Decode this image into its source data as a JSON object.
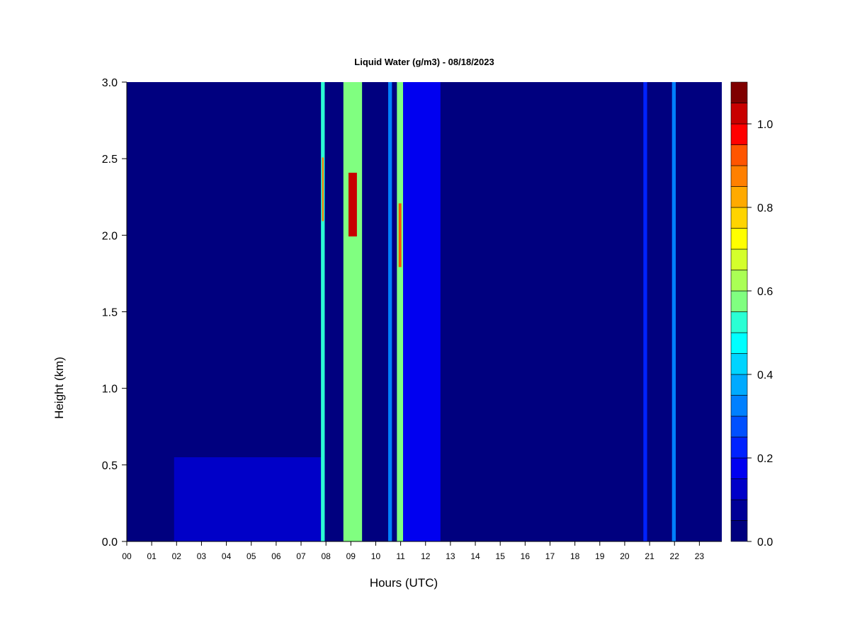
{
  "chart_data": {
    "type": "heatmap",
    "title": "Liquid Water (g/m3) - 08/18/2023",
    "xlabel": "Hours (UTC)",
    "ylabel": "Height (km)",
    "xlim": [
      0,
      23.9
    ],
    "ylim": [
      0,
      3.0
    ],
    "x_tick_labels": [
      "00",
      "01",
      "02",
      "03",
      "04",
      "05",
      "06",
      "07",
      "08",
      "09",
      "10",
      "11",
      "12",
      "13",
      "14",
      "15",
      "16",
      "17",
      "18",
      "19",
      "20",
      "21",
      "22",
      "23"
    ],
    "y_tick_labels": [
      "0.0",
      "0.5",
      "1.0",
      "1.5",
      "2.0",
      "2.5",
      "3.0"
    ],
    "y_tick_values": [
      0.0,
      0.5,
      1.0,
      1.5,
      2.0,
      2.5,
      3.0
    ],
    "background_value": 0.0,
    "colorbar": {
      "range": [
        0.0,
        1.1
      ],
      "levels": 22,
      "tick_labels": [
        "0.0",
        "0.2",
        "0.4",
        "0.6",
        "0.8",
        "1.0"
      ],
      "tick_values": [
        0.0,
        0.2,
        0.4,
        0.6,
        0.8,
        1.0
      ],
      "colors": [
        "#00007f",
        "#000096",
        "#0000c8",
        "#0000f0",
        "#0022ff",
        "#0050ff",
        "#0080ff",
        "#00aaff",
        "#00d4ff",
        "#00ffff",
        "#2bffd4",
        "#55ffaa",
        "#80ff80",
        "#aaff55",
        "#d4ff2b",
        "#ffff00",
        "#ffd400",
        "#ffaa00",
        "#ff8000",
        "#ff5500",
        "#ff0000",
        "#c80000",
        "#7f0000"
      ]
    },
    "features": [
      {
        "label": "low-level moisture",
        "hour_start": 1.9,
        "hour_end": 7.9,
        "height_top": 0.55,
        "value": 0.1
      },
      {
        "label": "band 07:55",
        "hour_start": 7.8,
        "hour_end": 7.95,
        "height_top": 3.0,
        "value": 0.5,
        "peak_height": 2.3,
        "peak_value": 0.9
      },
      {
        "label": "band 09:00",
        "hour_start": 8.7,
        "hour_end": 9.45,
        "height_top": 3.0,
        "value": 0.6,
        "peak_height": 2.2,
        "peak_value": 1.05
      },
      {
        "label": "band 10:30",
        "hour_start": 10.5,
        "hour_end": 10.65,
        "height_top": 3.0,
        "value": 0.3
      },
      {
        "label": "band 11:00",
        "hour_start": 10.85,
        "hour_end": 11.1,
        "height_top": 3.0,
        "value": 0.6,
        "peak_height": 2.0,
        "peak_value": 0.95
      },
      {
        "label": "upper cloud tail",
        "hour_start": 11.1,
        "hour_end": 12.6,
        "height_top": 3.0,
        "value": 0.15
      },
      {
        "label": "band 20:50",
        "hour_start": 20.75,
        "hour_end": 20.9,
        "height_top": 3.0,
        "value": 0.2
      },
      {
        "label": "band 22:00",
        "hour_start": 21.9,
        "hour_end": 22.05,
        "height_top": 3.0,
        "value": 0.3
      }
    ]
  }
}
